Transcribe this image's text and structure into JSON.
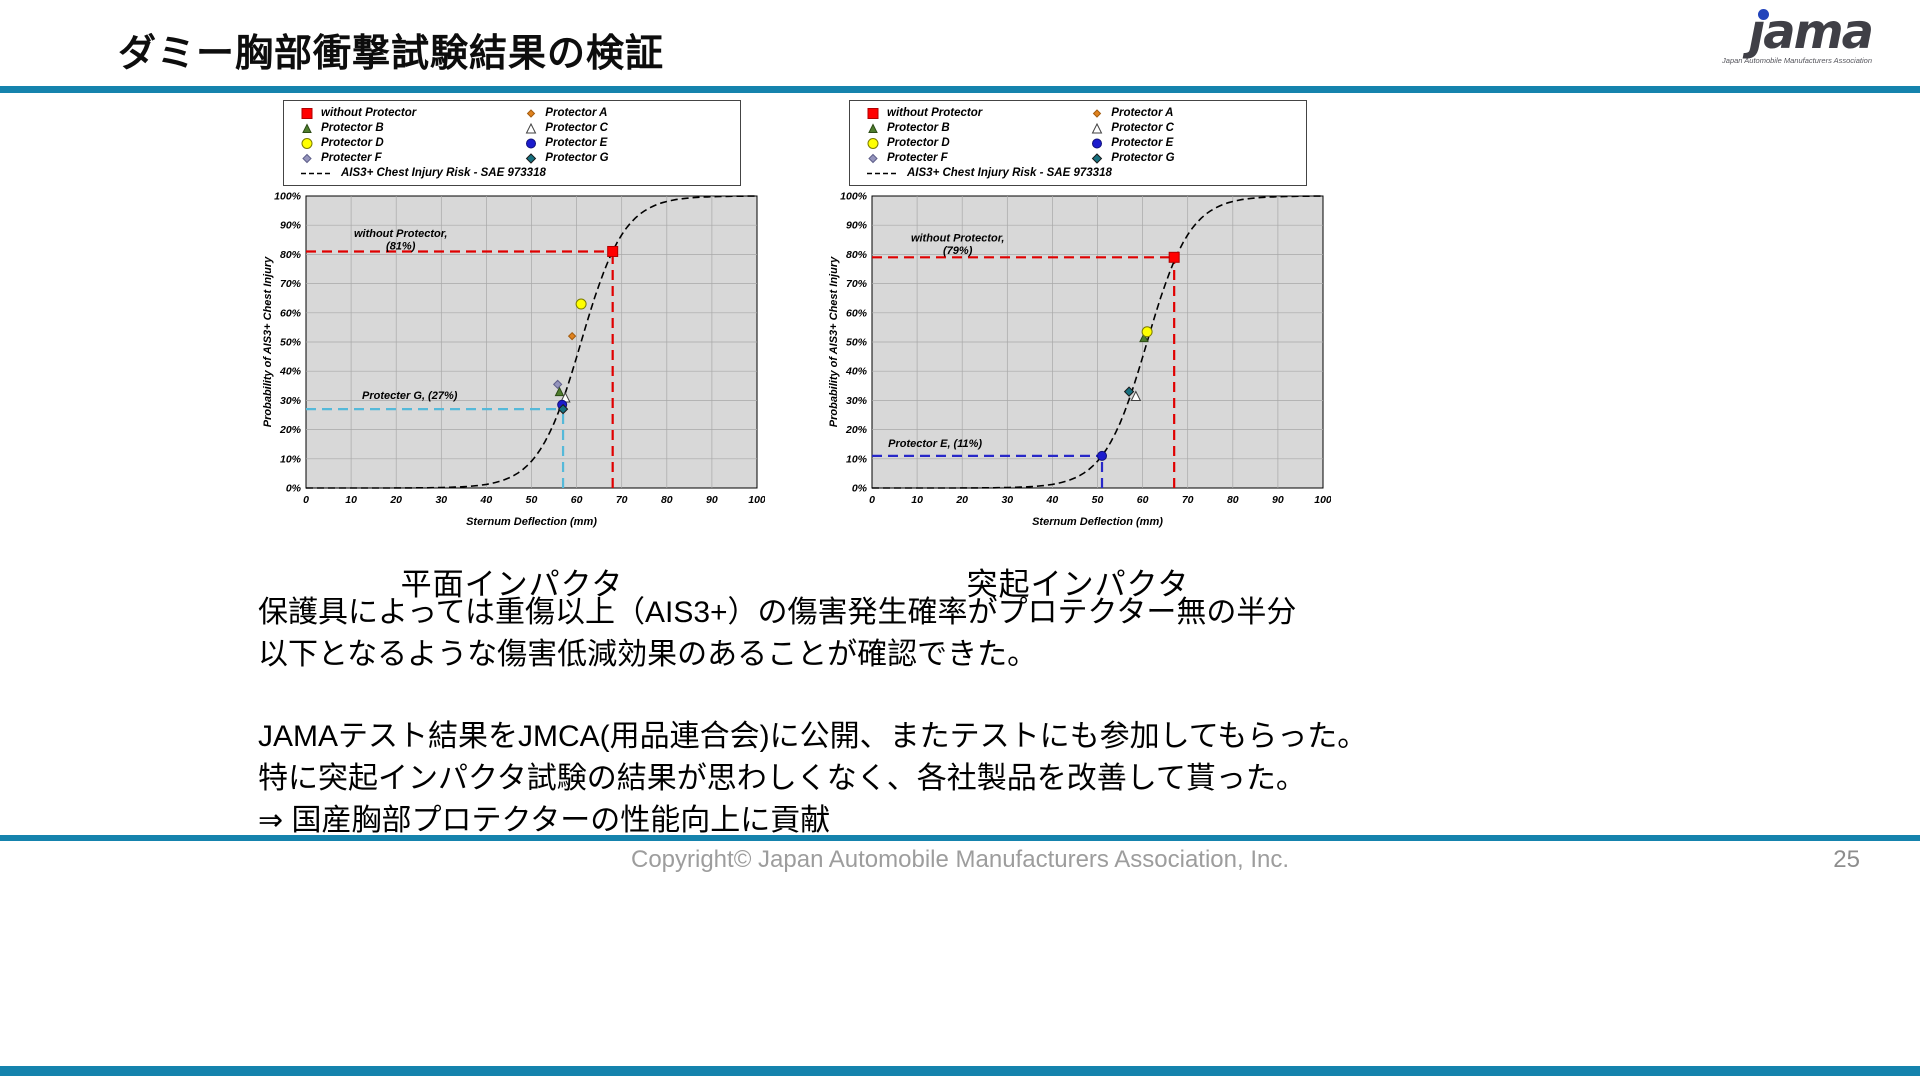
{
  "slide": {
    "title": "ダミー胸部衝撃試験結果の検証",
    "accent_color": "#1583ad"
  },
  "logo": {
    "text": "ȷama",
    "caption": "Japan Automobile Manufacturers Association"
  },
  "series_styles": [
    {
      "name": "without Protector",
      "marker": "square",
      "fill": "#ff0000",
      "stroke": "#b00000",
      "size": 10
    },
    {
      "name": "Protector A",
      "marker": "diamond",
      "fill": "#e0821e",
      "stroke": "#a35c10",
      "size": 7
    },
    {
      "name": "Protector B",
      "marker": "triangle",
      "fill": "#4e7d2d",
      "stroke": "#2c4b16",
      "size": 8
    },
    {
      "name": "Protector C",
      "marker": "triangle",
      "fill": "#ffffff",
      "stroke": "#404040",
      "size": 9
    },
    {
      "name": "Protector D",
      "marker": "circle",
      "fill": "#ffff00",
      "stroke": "#7a7a00",
      "size": 10
    },
    {
      "name": "Protector E",
      "marker": "circle",
      "fill": "#1c1ccd",
      "stroke": "#10107a",
      "size": 9
    },
    {
      "name": "Protecter F",
      "marker": "diamond",
      "fill": "#9494bc",
      "stroke": "#5e5e8a",
      "size": 8
    },
    {
      "name": "Protector G",
      "marker": "diamond",
      "fill": "#17707f",
      "stroke": "#1a1a1a",
      "size": 9
    }
  ],
  "chart_data": [
    {
      "type": "scatter",
      "title": "平面インパクタ",
      "xlabel": "Sternum Deflection (mm)",
      "ylabel": "Probability of AIS3+ Chest Injury",
      "xlim": [
        0,
        100
      ],
      "ylim": [
        0,
        100
      ],
      "tick_step": 10,
      "grid": true,
      "legend_position": "top",
      "curve": {
        "name": "AIS3+ Chest Injury Risk - SAE 973318",
        "type": "logistic",
        "x0": 61,
        "s": 4.8
      },
      "points": [
        {
          "series": "without Protector",
          "x": 68,
          "y": 81
        },
        {
          "series": "Protector A",
          "x": 59,
          "y": 52
        },
        {
          "series": "Protector B",
          "x": 56.2,
          "y": 33
        },
        {
          "series": "Protector C",
          "x": 57.5,
          "y": 31
        },
        {
          "series": "Protector D",
          "x": 61,
          "y": 63
        },
        {
          "series": "Protector E",
          "x": 56.8,
          "y": 28.5
        },
        {
          "series": "Protecter F",
          "x": 55.8,
          "y": 35.5
        },
        {
          "series": "Protector G",
          "x": 57,
          "y": 27
        }
      ],
      "annotations": [
        {
          "label": "without Protector,\n(81%)",
          "x": 68,
          "y": 81,
          "color": "#e00000",
          "text_x": 21,
          "text_y": 86
        },
        {
          "label": "Protecter G, (27%)",
          "x": 57,
          "y": 27,
          "color": "#55b9d9",
          "text_x": 23,
          "text_y": 30.5
        }
      ]
    },
    {
      "type": "scatter",
      "title": "突起インパクタ",
      "xlabel": "Sternum Deflection (mm)",
      "ylabel": "Probability of AIS3+ Chest Injury",
      "xlim": [
        0,
        100
      ],
      "ylim": [
        0,
        100
      ],
      "tick_step": 10,
      "grid": true,
      "legend_position": "top",
      "curve": {
        "name": "AIS3+ Chest Injury Risk - SAE 973318",
        "type": "logistic",
        "x0": 61,
        "s": 4.8
      },
      "points": [
        {
          "series": "without Protector",
          "x": 67,
          "y": 79
        },
        {
          "series": "Protector B",
          "x": 60.3,
          "y": 51.5
        },
        {
          "series": "Protector C",
          "x": 58.5,
          "y": 31.5
        },
        {
          "series": "Protector D",
          "x": 61,
          "y": 53.5
        },
        {
          "series": "Protector E",
          "x": 51,
          "y": 11
        },
        {
          "series": "Protector G",
          "x": 57,
          "y": 33
        }
      ],
      "annotations": [
        {
          "label": "without Protector,\n(79%)",
          "x": 67,
          "y": 79,
          "color": "#e00000",
          "text_x": 19,
          "text_y": 84.5
        },
        {
          "label": "Protector E, (11%)",
          "x": 51,
          "y": 11,
          "color": "#2828c8",
          "text_x": 14,
          "text_y": 14
        }
      ]
    }
  ],
  "body": {
    "para1": "保護具によっては重傷以上（AIS3+）の傷害発生確率がプロテクター無の半分\n以下となるような傷害低減効果のあることが確認できた。",
    "para2": "JAMAテスト結果をJMCA(用品連合会)に公開、またテストにも参加してもらった。\n特に突起インパクタ試験の結果が思わしくなく、各社製品を改善して貰った。\n⇒ 国産胸部プロテクターの性能向上に貢献"
  },
  "footer": {
    "copyright": "Copyright© Japan Automobile Manufacturers Association, Inc.",
    "page": "25"
  }
}
